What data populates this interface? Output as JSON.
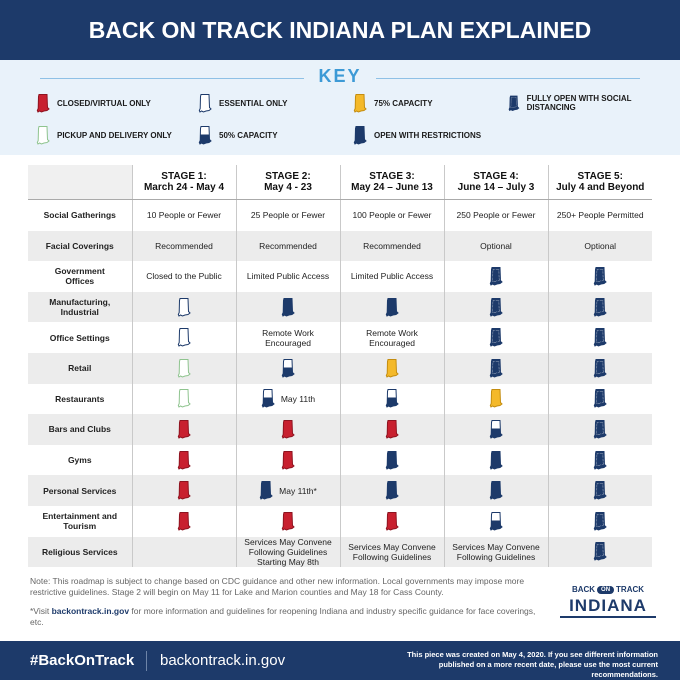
{
  "header": {
    "title": "BACK ON TRACK INDIANA PLAN EXPLAINED"
  },
  "key": {
    "title": "KEY",
    "items": [
      "CLOSED/VIRTUAL ONLY",
      "ESSENTIAL ONLY",
      "75% CAPACITY",
      "FULLY OPEN WITH SOCIAL DISTANCING",
      "PICKUP AND DELIVERY ONLY",
      "50% CAPACITY",
      "OPEN WITH RESTRICTIONS"
    ]
  },
  "table": {
    "columns": [
      {
        "stage": "STAGE 1:",
        "dates": "March 24 - May 4"
      },
      {
        "stage": "STAGE 2:",
        "dates": "May 4 - 23"
      },
      {
        "stage": "STAGE 3:",
        "dates": "May 24 – June 13"
      },
      {
        "stage": "STAGE 4:",
        "dates": "June 14 – July 3"
      },
      {
        "stage": "STAGE 5:",
        "dates": "July 4 and Beyond"
      }
    ],
    "rows": [
      {
        "label": "Social Gatherings",
        "cells": [
          "10 People or Fewer",
          "25 People or Fewer",
          "100 People or Fewer",
          "250 People or Fewer",
          "250+ People Permitted"
        ]
      },
      {
        "label": "Facial Coverings",
        "cells": [
          "Recommended",
          "Recommended",
          "Recommended",
          "Optional",
          "Optional"
        ]
      },
      {
        "label": "Government Offices",
        "cells": [
          "Closed to the Public",
          "Limited Public Access",
          "Limited Public Access",
          null,
          null
        ]
      },
      {
        "label": "Manufacturing, Industrial",
        "cells": [
          null,
          null,
          null,
          null,
          null
        ]
      },
      {
        "label": "Office Settings",
        "cells": [
          null,
          "Remote Work Encouraged",
          "Remote Work Encouraged",
          null,
          null
        ]
      },
      {
        "label": "Retail",
        "cells": [
          null,
          null,
          null,
          null,
          null
        ]
      },
      {
        "label": "Restaurants",
        "cells": [
          null,
          "May 11th",
          null,
          null,
          null
        ]
      },
      {
        "label": "Bars and Clubs",
        "cells": [
          null,
          null,
          null,
          null,
          null
        ]
      },
      {
        "label": "Gyms",
        "cells": [
          null,
          null,
          null,
          null,
          null
        ]
      },
      {
        "label": "Personal Services",
        "cells": [
          null,
          "May 11th*",
          null,
          null,
          null
        ]
      },
      {
        "label": "Entertainment and Tourism",
        "cells": [
          null,
          null,
          null,
          null,
          null
        ]
      },
      {
        "label": "Religious Services",
        "cells": [
          null,
          "Services May Convene Following Guidelines Starting May 8th",
          "Services May Convene Following Guidelines",
          "Services May Convene Following Guidelines",
          null
        ]
      }
    ]
  },
  "notes": [
    "Note: This roadmap is subject to change based on CDC guidance and other new information. Local governments may impose more restrictive guidelines. Stage 2 will begin on May 11 for Lake and Marion counties and May 18 for Cass County.",
    {
      "before": "*Visit ",
      "link": "backontrack.in.gov",
      "after": " for more information and guidelines for reopening Indiana and industry specific guidance for face coverings, etc."
    }
  ],
  "logo": {
    "back": "BACK",
    "on": "ON",
    "track": "TRACK",
    "state": "INDIANA"
  },
  "footer": {
    "hashtag": "#BackOnTrack",
    "url": "backontrack.in.gov",
    "disclaimer": "This piece was created on May 4, 2020. If you see different information published on a more recent date, please use the most current recommendations."
  }
}
